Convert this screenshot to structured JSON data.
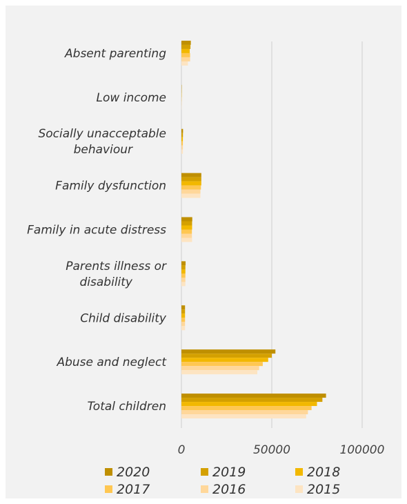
{
  "chart_data": {
    "type": "bar",
    "orientation": "horizontal",
    "categories": [
      "Absent parenting",
      "Low income",
      "Socially unacceptable behaviour",
      "Family dysfunction",
      "Family in acute distress",
      "Parents illness or disability",
      "Child disability",
      "Abuse and neglect",
      "Total children"
    ],
    "category_lines": [
      [
        "Absent parenting"
      ],
      [
        "Low income"
      ],
      [
        "Socially unacceptable",
        "behaviour"
      ],
      [
        "Family dysfunction"
      ],
      [
        "Family in acute distress"
      ],
      [
        "Parents illness or",
        "disability"
      ],
      [
        "Child disability"
      ],
      [
        "Abuse and neglect"
      ],
      [
        "Total children"
      ]
    ],
    "series": [
      {
        "name": "2020",
        "color": "#bf8f00",
        "values": [
          5200,
          150,
          900,
          11000,
          6000,
          2300,
          2000,
          52000,
          80000
        ]
      },
      {
        "name": "2019",
        "color": "#d4a000",
        "values": [
          5000,
          150,
          850,
          11000,
          5900,
          2200,
          2000,
          50000,
          78000
        ]
      },
      {
        "name": "2018",
        "color": "#f2b800",
        "values": [
          4600,
          140,
          800,
          11000,
          5900,
          2200,
          2000,
          48000,
          75000
        ]
      },
      {
        "name": "2017",
        "color": "#ffc752",
        "values": [
          4800,
          130,
          800,
          10800,
          5800,
          2200,
          2000,
          45000,
          72000
        ]
      },
      {
        "name": "2016",
        "color": "#ffd79a",
        "values": [
          4800,
          130,
          800,
          10500,
          5800,
          2200,
          2000,
          43000,
          70000
        ]
      },
      {
        "name": "2015",
        "color": "#fde4c2",
        "values": [
          3600,
          120,
          800,
          10500,
          5900,
          2200,
          2000,
          42000,
          69000
        ]
      }
    ],
    "xlim": [
      0,
      100000
    ],
    "xticks": [
      0,
      50000,
      100000
    ],
    "xtick_labels": [
      "0",
      "50000",
      "100000"
    ],
    "grid": "vertical",
    "legend_position": "bottom"
  }
}
